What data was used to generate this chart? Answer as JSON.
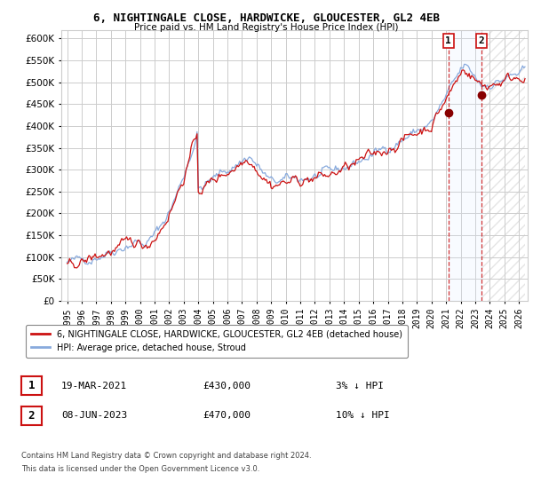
{
  "title": "6, NIGHTINGALE CLOSE, HARDWICKE, GLOUCESTER, GL2 4EB",
  "subtitle": "Price paid vs. HM Land Registry's House Price Index (HPI)",
  "legend_line1": "6, NIGHTINGALE CLOSE, HARDWICKE, GLOUCESTER, GL2 4EB (detached house)",
  "legend_line2": "HPI: Average price, detached house, Stroud",
  "sale1_date": "19-MAR-2021",
  "sale1_price": 430000,
  "sale1_pct": "3% ↓ HPI",
  "sale2_date": "08-JUN-2023",
  "sale2_price": 470000,
  "sale2_pct": "10% ↓ HPI",
  "hpi_color": "#88aadd",
  "price_color": "#cc1111",
  "marker_color": "#880000",
  "vline1_color": "#cc1111",
  "vline2_color": "#cc1111",
  "shade_color": "#ddeeff",
  "grid_color": "#cccccc",
  "bg_color": "#ffffff",
  "ylim": [
    0,
    620000
  ],
  "yticks": [
    0,
    50000,
    100000,
    150000,
    200000,
    250000,
    300000,
    350000,
    400000,
    450000,
    500000,
    550000,
    600000
  ],
  "footnote1": "Contains HM Land Registry data © Crown copyright and database right 2024.",
  "footnote2": "This data is licensed under the Open Government Licence v3.0.",
  "hatch_color": "#cccccc"
}
